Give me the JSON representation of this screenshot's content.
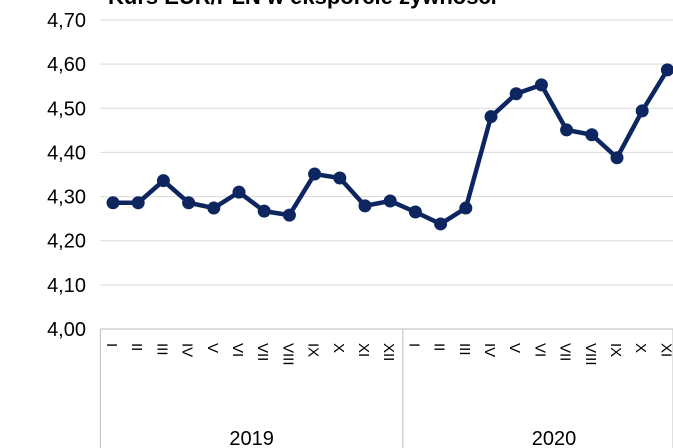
{
  "chart_data": {
    "type": "line",
    "title": "Kurs EUR/PLN w eksporcie żywności",
    "categories": [
      "I",
      "II",
      "III",
      "IV",
      "V",
      "VI",
      "VII",
      "VIII",
      "IX",
      "X",
      "XI",
      "XII",
      "I",
      "II",
      "III",
      "IV",
      "V",
      "VI",
      "VII",
      "VIII",
      "IX",
      "X",
      "XI"
    ],
    "groups": [
      "2019",
      "2020"
    ],
    "series": [
      {
        "name": "EUR/PLN",
        "color": "#0d2660",
        "values": [
          4.286,
          4.286,
          4.336,
          4.286,
          4.274,
          4.31,
          4.267,
          4.258,
          4.351,
          4.342,
          4.279,
          4.29,
          4.265,
          4.238,
          4.274,
          4.481,
          4.533,
          4.553,
          4.451,
          4.44,
          4.388,
          4.494,
          4.587
        ]
      }
    ],
    "ylim": [
      4.0,
      4.7
    ],
    "yticks": [
      {
        "value": 4.0,
        "label": "4,00"
      },
      {
        "value": 4.1,
        "label": "4,10"
      },
      {
        "value": 4.2,
        "label": "4,20"
      },
      {
        "value": 4.3,
        "label": "4,30"
      },
      {
        "value": 4.4,
        "label": "4,40"
      },
      {
        "value": 4.5,
        "label": "4,50"
      },
      {
        "value": 4.6,
        "label": "4,60"
      },
      {
        "value": 4.7,
        "label": "4,70"
      }
    ],
    "grid": true
  }
}
